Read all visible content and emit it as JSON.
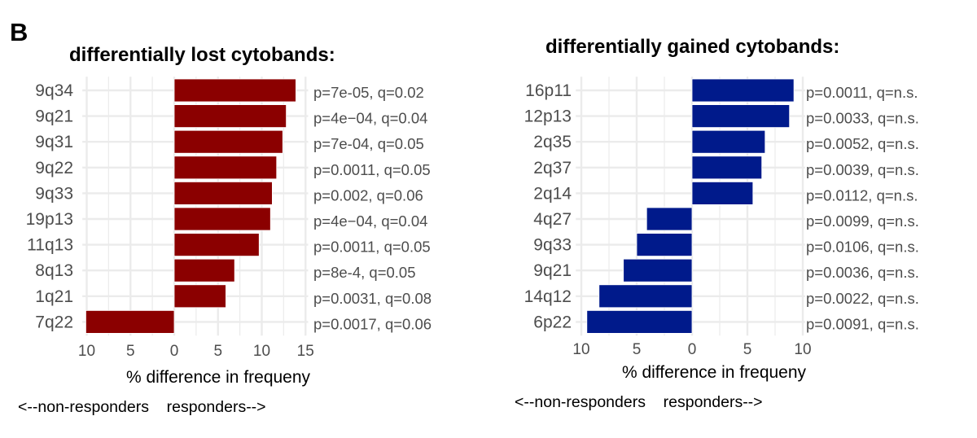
{
  "panel_label": "B",
  "chart_data": [
    {
      "type": "bar",
      "orientation": "horizontal",
      "title": "differentially lost cytobands:",
      "xlabel": "% difference in frequeny",
      "direction_label": "<--non-responders    responders-->",
      "xlim": [
        -10.5,
        15.3
      ],
      "xticks": [
        -10,
        -5,
        0,
        5,
        10,
        15
      ],
      "xtick_labels": [
        "10",
        "5",
        "0",
        "5",
        "10",
        "15"
      ],
      "grid": true,
      "color": "#8b0000",
      "categories": [
        "9q34",
        "9q21",
        "9q31",
        "9q22",
        "9q33",
        "19p13",
        "11q13",
        "8q13",
        "1q21",
        "7q22"
      ],
      "values": [
        13.9,
        12.8,
        12.4,
        11.7,
        11.2,
        11.0,
        9.7,
        6.9,
        5.9,
        -10.1
      ],
      "annotations": [
        "p=7e-05, q=0.02",
        "p=4e−04, q=0.04",
        "p=7e-04, q=0.05",
        "p=0.0011, q=0.05",
        "p=0.002, q=0.06",
        "p=4e−04, q=0.04",
        "p=0.0011, q=0.05",
        "p=8e-4, q=0.05",
        "p=0.0031, q=0.08",
        "p=0.0017, q=0.06"
      ]
    },
    {
      "type": "bar",
      "orientation": "horizontal",
      "title": "differentially gained cytobands:",
      "xlabel": "% difference in frequeny",
      "direction_label": "<--non-responders    responders-->",
      "xlim": [
        -10.5,
        10.2
      ],
      "xticks": [
        -10,
        -5,
        0,
        5,
        10
      ],
      "xtick_labels": [
        "10",
        "5",
        "0",
        "5",
        "10"
      ],
      "grid": true,
      "color": "#001a8b",
      "categories": [
        "16p11",
        "12p13",
        "2q35",
        "2q37",
        "2q14",
        "4q27",
        "9q33",
        "9q21",
        "14q12",
        "6p22"
      ],
      "values": [
        9.2,
        8.8,
        6.6,
        6.3,
        5.5,
        -4.1,
        -5.0,
        -6.2,
        -8.4,
        -9.5
      ],
      "annotations": [
        "p=0.0011, q=n.s.",
        "p=0.0033, q=n.s.",
        "p=0.0052, q=n.s.",
        "p=0.0039, q=n.s.",
        "p=0.0112, q=n.s.",
        "p=0.0099, q=n.s.",
        "p=0.0106, q=n.s.",
        "p=0.0036, q=n.s.",
        "p=0.0022, q=n.s.",
        "p=0.0091, q=n.s."
      ]
    }
  ]
}
